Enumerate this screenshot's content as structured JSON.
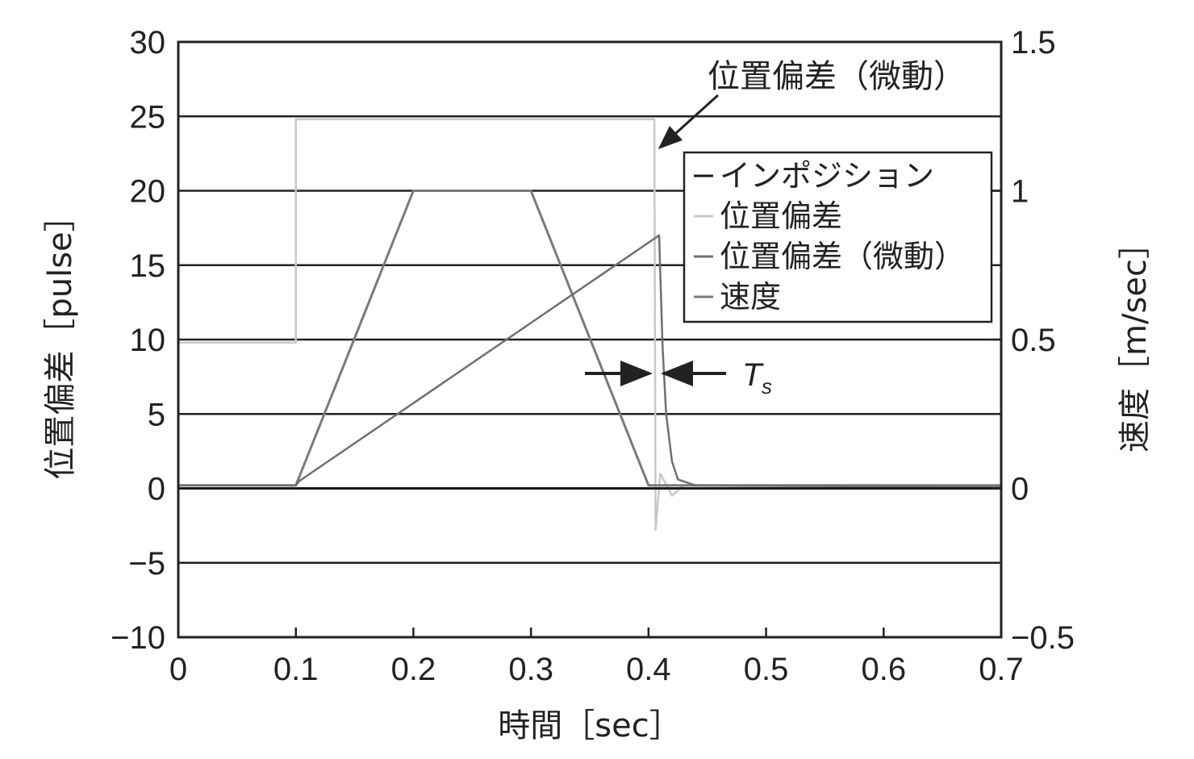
{
  "chart_data": {
    "type": "line",
    "xlabel": "時間［sec］",
    "ylabel_left": "位置偏差［pulse］",
    "ylabel_right": "速度［m/sec］",
    "xlim": [
      0,
      0.7
    ],
    "ylim_left": [
      -10,
      30
    ],
    "ylim_right": [
      -0.5,
      1.5
    ],
    "x_ticks": [
      "0",
      "0.1",
      "0.2",
      "0.3",
      "0.4",
      "0.5",
      "0.6",
      "0.7"
    ],
    "y_ticks_left": [
      "30",
      "25",
      "20",
      "15",
      "10",
      "5",
      "0",
      "−5",
      "−10"
    ],
    "y_ticks_right": [
      "1.5",
      "1",
      "0.5",
      "0",
      "−0.5"
    ],
    "grid": "horizontal",
    "legend_position": "upper-right",
    "series": [
      {
        "name": "インポジション",
        "color": "#1a1a1a",
        "points": [
          [
            0,
            0
          ],
          [
            0.1,
            0
          ],
          [
            0.1,
            0
          ],
          [
            0.405,
            0
          ],
          [
            0.405,
            0
          ],
          [
            0.41,
            0
          ],
          [
            0.41,
            0
          ],
          [
            0.7,
            0
          ]
        ]
      },
      {
        "name": "位置偏差",
        "color": "#c8c8c8",
        "points": [
          [
            0,
            9.8
          ],
          [
            0.1,
            9.8
          ],
          [
            0.1,
            24.8
          ],
          [
            0.4,
            24.8
          ],
          [
            0.4,
            24.8
          ],
          [
            0.405,
            24.8
          ],
          [
            0.406,
            -2.8
          ],
          [
            0.41,
            1.0
          ],
          [
            0.42,
            -0.5
          ],
          [
            0.43,
            0.2
          ],
          [
            0.7,
            0
          ]
        ]
      },
      {
        "name": "位置偏差（微動）",
        "color": "#707070",
        "points": [
          [
            0,
            0.2
          ],
          [
            0.1,
            0.2
          ],
          [
            0.103,
            0.5
          ],
          [
            0.409,
            17
          ],
          [
            0.412,
            9.5
          ],
          [
            0.415,
            5
          ],
          [
            0.42,
            1.8
          ],
          [
            0.425,
            0.6
          ],
          [
            0.44,
            0.2
          ],
          [
            0.7,
            0.1
          ]
        ]
      },
      {
        "name": "速度",
        "color": "#7a7a7a",
        "points": [
          [
            0,
            0.01
          ],
          [
            0.1,
            0.01
          ],
          [
            0.2,
            1.0
          ],
          [
            0.3,
            1.0
          ],
          [
            0.4,
            0.01
          ],
          [
            0.7,
            0.01
          ]
        ]
      }
    ],
    "annotations": [
      {
        "text": "位置偏差（微動）",
        "x": 0.405,
        "y": 22.5
      },
      {
        "text": "T",
        "subscript": "s",
        "x_start": 0.405,
        "x_end": 0.41,
        "y": 7.5
      }
    ]
  }
}
